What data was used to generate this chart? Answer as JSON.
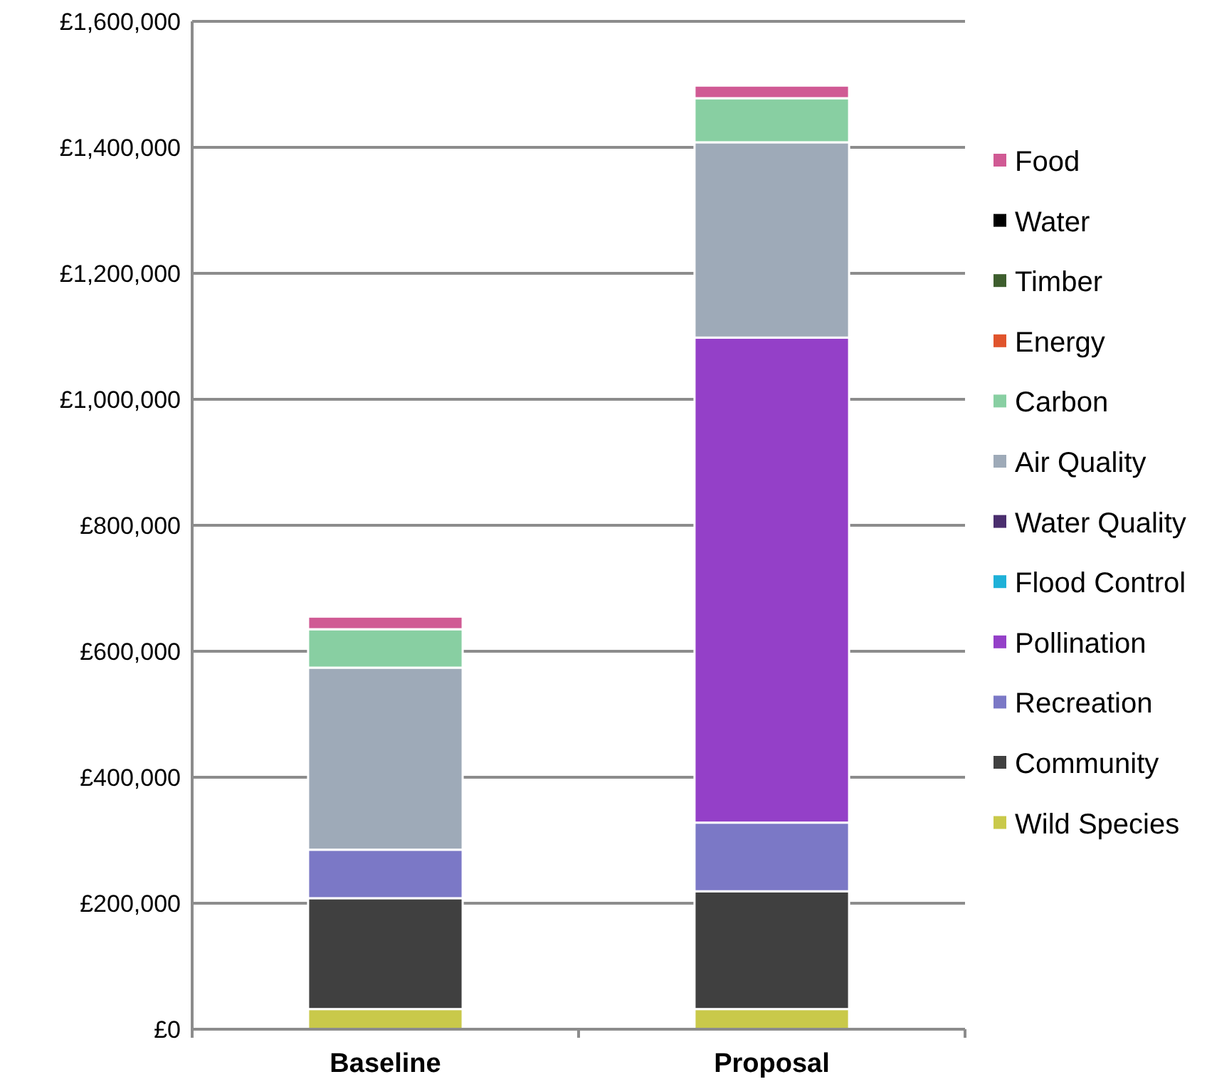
{
  "chart_data": {
    "type": "bar",
    "stacked": true,
    "categories": [
      "Baseline",
      "Proposal"
    ],
    "series": [
      {
        "name": "Wild Species",
        "color": "#c9c94a",
        "values": [
          32000,
          32000
        ]
      },
      {
        "name": "Community",
        "color": "#404040",
        "values": [
          176000,
          187000
        ]
      },
      {
        "name": "Recreation",
        "color": "#7b78c6",
        "values": [
          77000,
          109000
        ]
      },
      {
        "name": "Pollination",
        "color": "#9440c8",
        "values": [
          0,
          770000
        ]
      },
      {
        "name": "Flood Control",
        "color": "#1fb1d8",
        "values": [
          0,
          0
        ]
      },
      {
        "name": "Water Quality",
        "color": "#4a2e6e",
        "values": [
          0,
          0
        ]
      },
      {
        "name": "Air Quality",
        "color": "#9eaab8",
        "values": [
          289000,
          310000
        ]
      },
      {
        "name": "Carbon",
        "color": "#88cfa2",
        "values": [
          61000,
          70000
        ]
      },
      {
        "name": "Energy",
        "color": "#e0542c",
        "values": [
          0,
          0
        ]
      },
      {
        "name": "Timber",
        "color": "#3e5e2e",
        "values": [
          0,
          0
        ]
      },
      {
        "name": "Water",
        "color": "#000000",
        "values": [
          0,
          0
        ]
      },
      {
        "name": "Food",
        "color": "#d05a94",
        "values": [
          20000,
          20000
        ]
      }
    ],
    "ylim": [
      0,
      1600000
    ],
    "yticks": [
      {
        "value": 0,
        "label": "£0"
      },
      {
        "value": 200000,
        "label": "£200,000"
      },
      {
        "value": 400000,
        "label": "£400,000"
      },
      {
        "value": 600000,
        "label": "£600,000"
      },
      {
        "value": 800000,
        "label": "£800,000"
      },
      {
        "value": 1000000,
        "label": "£1,000,000"
      },
      {
        "value": 1200000,
        "label": "£1,200,000"
      },
      {
        "value": 1400000,
        "label": "£1,400,000"
      },
      {
        "value": 1600000,
        "label": "£1,600,000"
      }
    ],
    "grid": "y",
    "legend": "right"
  }
}
